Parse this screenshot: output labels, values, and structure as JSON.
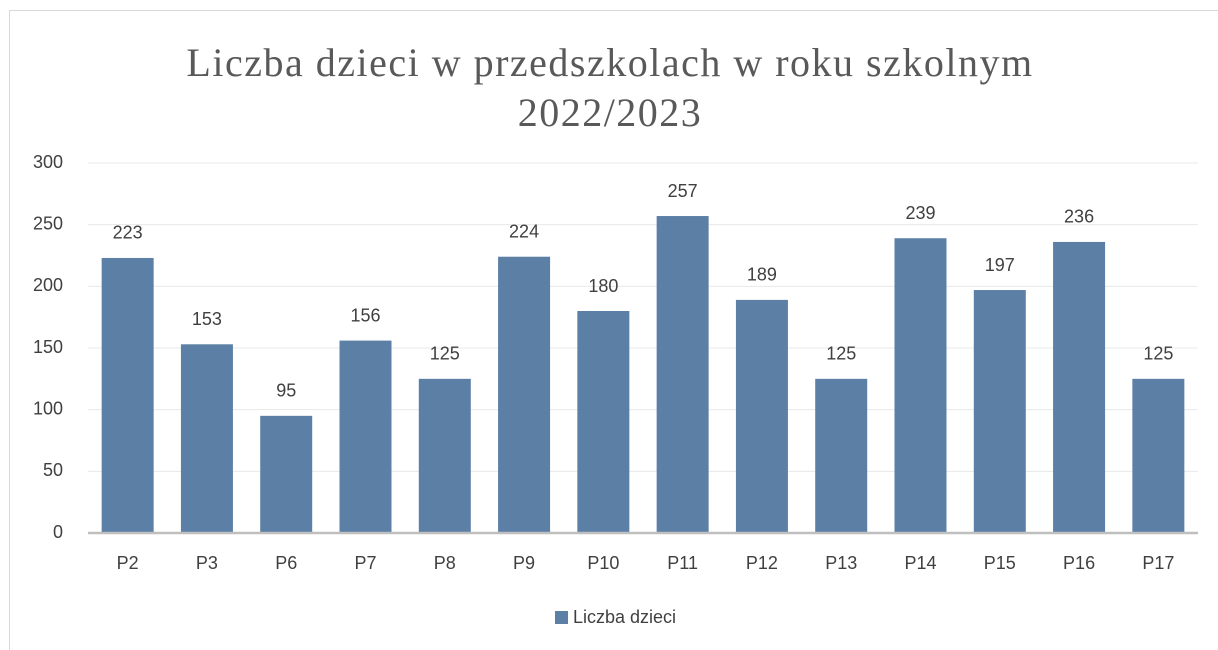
{
  "chart_data": {
    "type": "bar",
    "title": "Liczba dzieci w przedszkolach w roku szkolnym 2022/2023",
    "categories": [
      "P2",
      "P3",
      "P6",
      "P7",
      "P8",
      "P9",
      "P10",
      "P11",
      "P12",
      "P13",
      "P14",
      "P15",
      "P16",
      "P17"
    ],
    "series": [
      {
        "name": "Liczba dzieci",
        "color": "#5b7fa5",
        "values": [
          223,
          153,
          95,
          156,
          125,
          224,
          180,
          257,
          189,
          125,
          239,
          197,
          236,
          125
        ]
      }
    ],
    "ylim": [
      0,
      300
    ],
    "yticks": [
      0,
      50,
      100,
      150,
      200,
      250,
      300
    ],
    "grid": true,
    "legend": "bottom"
  }
}
